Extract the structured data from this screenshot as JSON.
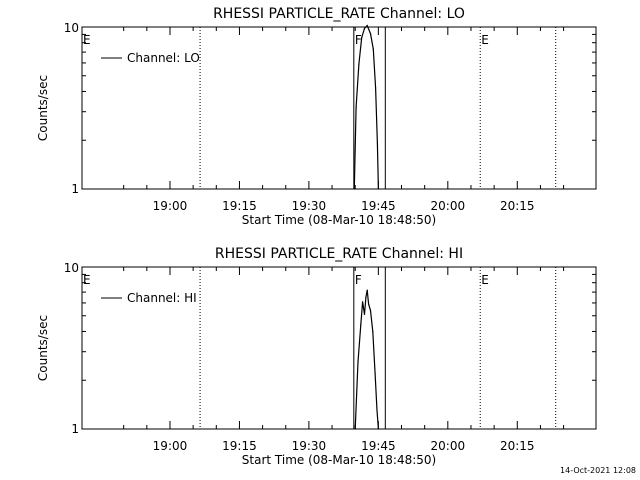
{
  "footer": {
    "timestamp": "14-Oct-2021 12:08"
  },
  "chart_data": [
    {
      "type": "line",
      "title": "RHESSI PARTICLE_RATE Channel: LO",
      "xlabel": "Start Time (08-Mar-10 18:48:50)",
      "ylabel": "Counts/sec",
      "y_scale": "log",
      "ylim": [
        1,
        10
      ],
      "y_ticks": [
        "1",
        "10"
      ],
      "xlim_min": [
        -8,
        103
      ],
      "x_ticks": [
        {
          "label": "19:00",
          "min": 11
        },
        {
          "label": "19:15",
          "min": 26
        },
        {
          "label": "19:30",
          "min": 41
        },
        {
          "label": "19:45",
          "min": 56
        },
        {
          "label": "20:00",
          "min": 71
        },
        {
          "label": "20:15",
          "min": 86
        }
      ],
      "legend": {
        "position": "top-left",
        "label": "Channel: LO"
      },
      "markers": [
        {
          "label": "E",
          "min": -8,
          "style": "dotted"
        },
        {
          "label": "",
          "min": 17.5,
          "style": "dotted"
        },
        {
          "label": "F",
          "min": 50.7,
          "style": "solid"
        },
        {
          "label": "",
          "min": 57.5,
          "style": "solid"
        },
        {
          "label": "E",
          "min": 78,
          "style": "dotted"
        },
        {
          "label": "",
          "min": 94.3,
          "style": "dotted"
        }
      ],
      "series": [
        {
          "name": "Channel: LO",
          "x": [
            50.8,
            51.2,
            51.8,
            52.4,
            53.0,
            53.6,
            54.3,
            54.9,
            55.4,
            55.8,
            56.0
          ],
          "y": [
            1.0,
            3.2,
            5.9,
            8.6,
            9.8,
            10.2,
            9.1,
            7.3,
            4.2,
            1.9,
            1.0
          ]
        }
      ]
    },
    {
      "type": "line",
      "title": "RHESSI PARTICLE_RATE Channel: HI",
      "xlabel": "Start Time (08-Mar-10 18:48:50)",
      "ylabel": "Counts/sec",
      "y_scale": "log",
      "ylim": [
        1,
        10
      ],
      "y_ticks": [
        "1",
        "10"
      ],
      "xlim_min": [
        -8,
        103
      ],
      "x_ticks": [
        {
          "label": "19:00",
          "min": 11
        },
        {
          "label": "19:15",
          "min": 26
        },
        {
          "label": "19:30",
          "min": 41
        },
        {
          "label": "19:45",
          "min": 56
        },
        {
          "label": "20:00",
          "min": 71
        },
        {
          "label": "20:15",
          "min": 86
        }
      ],
      "legend": {
        "position": "top-left",
        "label": "Channel: HI"
      },
      "markers": [
        {
          "label": "E",
          "min": -8,
          "style": "dotted"
        },
        {
          "label": "",
          "min": 17.5,
          "style": "dotted"
        },
        {
          "label": "F",
          "min": 50.7,
          "style": "solid"
        },
        {
          "label": "",
          "min": 57.5,
          "style": "solid"
        },
        {
          "label": "E",
          "min": 78,
          "style": "dotted"
        },
        {
          "label": "",
          "min": 94.3,
          "style": "dotted"
        }
      ],
      "series": [
        {
          "name": "Channel: HI",
          "x": [
            51.0,
            51.6,
            52.2,
            52.6,
            53.0,
            53.3,
            53.6,
            53.9,
            54.3,
            54.8,
            55.3,
            55.7,
            56.0
          ],
          "y": [
            1.0,
            2.6,
            4.4,
            6.1,
            5.1,
            6.5,
            7.2,
            5.9,
            5.4,
            4.0,
            2.2,
            1.3,
            1.0
          ]
        }
      ]
    }
  ]
}
